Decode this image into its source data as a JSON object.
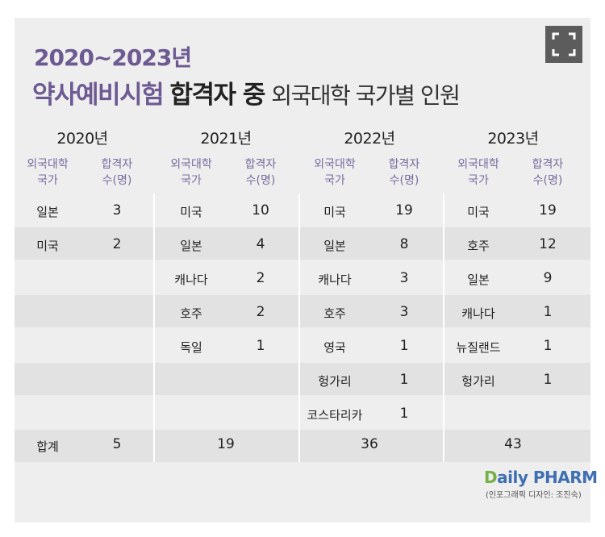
{
  "title": {
    "line1": "2020~2023년",
    "line2_part1": "약사예비시험",
    "line2_part2": "합격자 중",
    "line2_part3": "외국대학 국가별 인원"
  },
  "header": {
    "country_label_1": "외국대학",
    "country_label_2": "국가",
    "count_label_1": "합격자",
    "count_label_2": "수(명)"
  },
  "years": [
    {
      "year": "2020년",
      "rows": [
        {
          "country": "일본",
          "count": "3"
        },
        {
          "country": "미국",
          "count": "2"
        }
      ],
      "total": "5"
    },
    {
      "year": "2021년",
      "rows": [
        {
          "country": "미국",
          "count": "10"
        },
        {
          "country": "일본",
          "count": "4"
        },
        {
          "country": "캐나다",
          "count": "2"
        },
        {
          "country": "호주",
          "count": "2"
        },
        {
          "country": "독일",
          "count": "1"
        }
      ],
      "total": "19"
    },
    {
      "year": "2022년",
      "rows": [
        {
          "country": "미국",
          "count": "19"
        },
        {
          "country": "일본",
          "count": "8"
        },
        {
          "country": "캐나다",
          "count": "3"
        },
        {
          "country": "호주",
          "count": "3"
        },
        {
          "country": "영국",
          "count": "1"
        },
        {
          "country": "헝가리",
          "count": "1"
        },
        {
          "country": "코스타리카",
          "count": "1"
        }
      ],
      "total": "36"
    },
    {
      "year": "2023년",
      "rows": [
        {
          "country": "미국",
          "count": "19"
        },
        {
          "country": "호주",
          "count": "12"
        },
        {
          "country": "일본",
          "count": "9"
        },
        {
          "country": "캐나다",
          "count": "1"
        },
        {
          "country": "뉴질랜드",
          "count": "1"
        },
        {
          "country": "헝가리",
          "count": "1"
        }
      ],
      "total": "43"
    }
  ],
  "total_label": "합계",
  "logo": {
    "p": "D",
    "rest": "aily PHARM"
  },
  "credit": "(인포그래픽 디자인: 조진숙)",
  "colors": {
    "accent": "#6d5a93",
    "background": "#eeeeee",
    "band": "#e2e2e2"
  }
}
